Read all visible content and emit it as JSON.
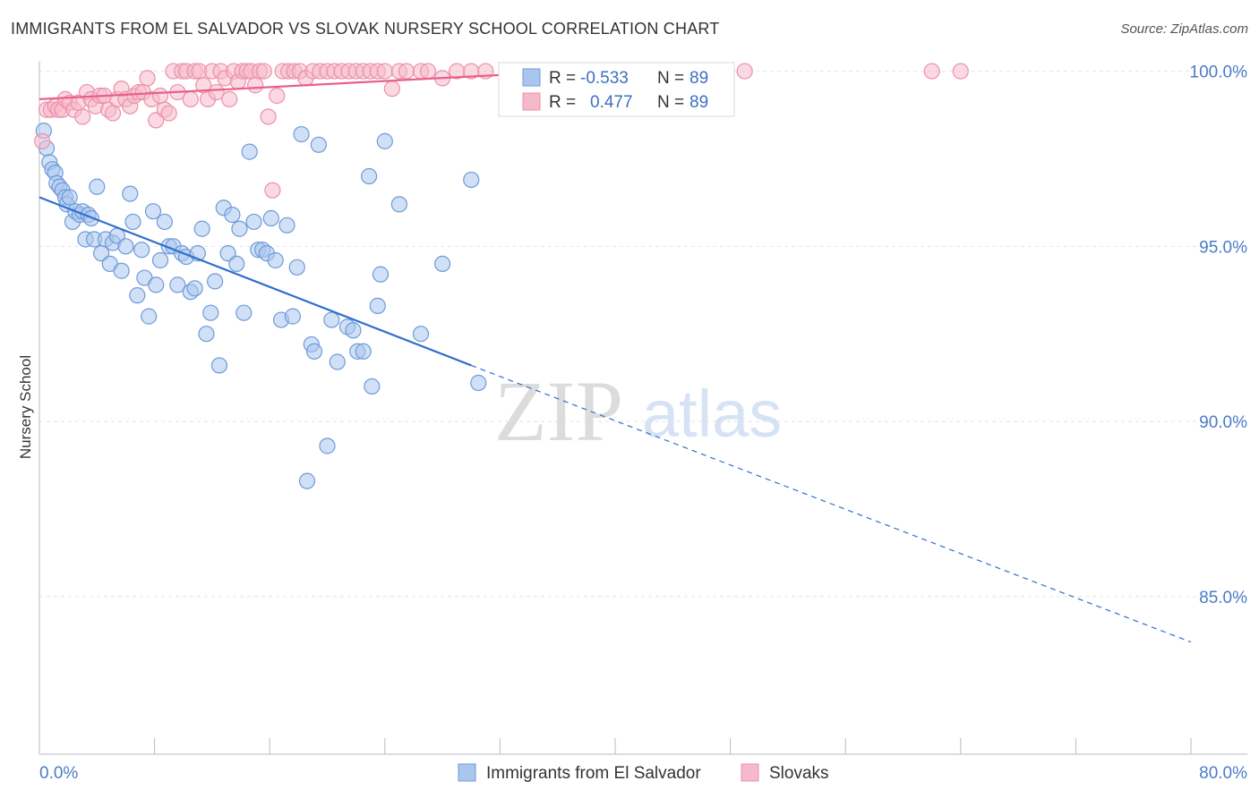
{
  "title": "IMMIGRANTS FROM EL SALVADOR VS SLOVAK NURSERY SCHOOL CORRELATION CHART",
  "source": "Source: ZipAtlas.com",
  "watermark": {
    "zip": "ZIP",
    "atlas": "atlas"
  },
  "colors": {
    "blue_fill": "#a9c6ef",
    "blue_stroke": "#6f9ad8",
    "blue_line": "#2f6fcf",
    "pink_fill": "#f6b9cb",
    "pink_stroke": "#ec8fab",
    "pink_line": "#e8608c",
    "tick_text": "#4a7cc7",
    "grid": "#e4e4e4"
  },
  "legend": {
    "rows": [
      {
        "r_label": "R =",
        "r_value": "-0.533",
        "n_label": "N =",
        "n_value": "89"
      },
      {
        "r_label": "R =",
        "r_value": "0.477",
        "n_label": "N =",
        "n_value": "89"
      }
    ]
  },
  "chart_data": {
    "type": "scatter",
    "xlabel": "",
    "ylabel": "Nursery School",
    "xlim": [
      0,
      80
    ],
    "ylim": [
      80.5,
      100.5
    ],
    "x_tick_labels": [
      "0.0%",
      "80.0%"
    ],
    "y_ticks": [
      85,
      90,
      95,
      100
    ],
    "y_tick_labels": [
      "85.0%",
      "90.0%",
      "95.0%",
      "100.0%"
    ],
    "grid": true,
    "legend_position": "top-center",
    "series": [
      {
        "name": "Immigrants from El Salvador",
        "color": "#a9c6ef",
        "trend": {
          "x0": 0,
          "y0": 96.4,
          "x1": 30,
          "y1": 91.6,
          "dash_x1": 80,
          "dash_y1": 83.7
        },
        "points": [
          [
            0.3,
            98.3
          ],
          [
            0.5,
            97.8
          ],
          [
            0.7,
            97.4
          ],
          [
            0.9,
            97.2
          ],
          [
            1.1,
            97.1
          ],
          [
            1.2,
            96.8
          ],
          [
            1.4,
            96.7
          ],
          [
            1.6,
            96.6
          ],
          [
            1.8,
            96.4
          ],
          [
            1.9,
            96.2
          ],
          [
            2.1,
            96.4
          ],
          [
            2.3,
            95.7
          ],
          [
            2.5,
            96.0
          ],
          [
            2.8,
            95.9
          ],
          [
            3.0,
            96.0
          ],
          [
            3.2,
            95.2
          ],
          [
            3.4,
            95.9
          ],
          [
            3.6,
            95.8
          ],
          [
            3.8,
            95.2
          ],
          [
            4.0,
            96.7
          ],
          [
            4.3,
            94.8
          ],
          [
            4.6,
            95.2
          ],
          [
            4.9,
            94.5
          ],
          [
            5.1,
            95.1
          ],
          [
            5.4,
            95.3
          ],
          [
            5.7,
            94.3
          ],
          [
            6.0,
            95.0
          ],
          [
            6.3,
            96.5
          ],
          [
            6.5,
            95.7
          ],
          [
            6.8,
            93.6
          ],
          [
            7.1,
            94.9
          ],
          [
            7.3,
            94.1
          ],
          [
            7.6,
            93.0
          ],
          [
            7.9,
            96.0
          ],
          [
            8.1,
            93.9
          ],
          [
            8.4,
            94.6
          ],
          [
            8.7,
            95.7
          ],
          [
            9.0,
            95.0
          ],
          [
            9.3,
            95.0
          ],
          [
            9.6,
            93.9
          ],
          [
            9.9,
            94.8
          ],
          [
            10.2,
            94.7
          ],
          [
            10.5,
            93.7
          ],
          [
            10.8,
            93.8
          ],
          [
            11.0,
            94.8
          ],
          [
            11.3,
            95.5
          ],
          [
            11.6,
            92.5
          ],
          [
            11.9,
            93.1
          ],
          [
            12.2,
            94.0
          ],
          [
            12.5,
            91.6
          ],
          [
            12.8,
            96.1
          ],
          [
            13.1,
            94.8
          ],
          [
            13.4,
            95.9
          ],
          [
            13.7,
            94.5
          ],
          [
            13.9,
            95.5
          ],
          [
            14.2,
            93.1
          ],
          [
            14.6,
            97.7
          ],
          [
            14.9,
            95.7
          ],
          [
            15.2,
            94.9
          ],
          [
            15.5,
            94.9
          ],
          [
            15.8,
            94.8
          ],
          [
            16.1,
            95.8
          ],
          [
            16.4,
            94.6
          ],
          [
            16.8,
            92.9
          ],
          [
            17.2,
            95.6
          ],
          [
            17.6,
            93.0
          ],
          [
            17.9,
            94.4
          ],
          [
            18.2,
            98.2
          ],
          [
            18.6,
            88.3
          ],
          [
            18.9,
            92.2
          ],
          [
            19.1,
            92.0
          ],
          [
            19.4,
            97.9
          ],
          [
            20.0,
            89.3
          ],
          [
            20.3,
            92.9
          ],
          [
            20.7,
            91.7
          ],
          [
            21.4,
            92.7
          ],
          [
            21.8,
            92.6
          ],
          [
            22.1,
            92.0
          ],
          [
            22.5,
            92.0
          ],
          [
            22.9,
            97.0
          ],
          [
            23.1,
            91.0
          ],
          [
            23.5,
            93.3
          ],
          [
            23.7,
            94.2
          ],
          [
            24.0,
            98.0
          ],
          [
            25.0,
            96.2
          ],
          [
            26.5,
            92.5
          ],
          [
            28.0,
            94.5
          ],
          [
            30.0,
            96.9
          ],
          [
            30.5,
            91.1
          ]
        ]
      },
      {
        "name": "Slovaks",
        "color": "#f6b9cb",
        "trend": {
          "x0": 0,
          "y0": 99.2,
          "x1": 37,
          "y1": 100.0
        },
        "points": [
          [
            0.2,
            98.0
          ],
          [
            0.5,
            98.9
          ],
          [
            0.8,
            98.9
          ],
          [
            1.1,
            99.0
          ],
          [
            1.3,
            98.9
          ],
          [
            1.6,
            98.9
          ],
          [
            1.8,
            99.2
          ],
          [
            2.1,
            99.1
          ],
          [
            2.4,
            98.9
          ],
          [
            2.7,
            99.1
          ],
          [
            3.0,
            98.7
          ],
          [
            3.3,
            99.4
          ],
          [
            3.6,
            99.2
          ],
          [
            3.9,
            99.0
          ],
          [
            4.2,
            99.3
          ],
          [
            4.5,
            99.3
          ],
          [
            4.8,
            98.9
          ],
          [
            5.1,
            98.8
          ],
          [
            5.4,
            99.2
          ],
          [
            5.7,
            99.5
          ],
          [
            6.0,
            99.2
          ],
          [
            6.3,
            99.0
          ],
          [
            6.6,
            99.3
          ],
          [
            6.9,
            99.4
          ],
          [
            7.2,
            99.4
          ],
          [
            7.5,
            99.8
          ],
          [
            7.8,
            99.2
          ],
          [
            8.1,
            98.6
          ],
          [
            8.4,
            99.3
          ],
          [
            8.7,
            98.9
          ],
          [
            9.0,
            98.8
          ],
          [
            9.3,
            100.0
          ],
          [
            9.6,
            99.4
          ],
          [
            9.9,
            100.0
          ],
          [
            10.2,
            100.0
          ],
          [
            10.5,
            99.2
          ],
          [
            10.8,
            100.0
          ],
          [
            11.1,
            100.0
          ],
          [
            11.4,
            99.6
          ],
          [
            11.7,
            99.2
          ],
          [
            12.0,
            100.0
          ],
          [
            12.3,
            99.4
          ],
          [
            12.6,
            100.0
          ],
          [
            12.9,
            99.8
          ],
          [
            13.2,
            99.2
          ],
          [
            13.5,
            100.0
          ],
          [
            13.8,
            99.7
          ],
          [
            14.1,
            100.0
          ],
          [
            14.4,
            100.0
          ],
          [
            14.7,
            100.0
          ],
          [
            15.0,
            99.6
          ],
          [
            15.3,
            100.0
          ],
          [
            15.6,
            100.0
          ],
          [
            15.9,
            98.7
          ],
          [
            16.2,
            96.6
          ],
          [
            16.5,
            99.3
          ],
          [
            16.9,
            100.0
          ],
          [
            17.3,
            100.0
          ],
          [
            17.7,
            100.0
          ],
          [
            18.1,
            100.0
          ],
          [
            18.5,
            99.8
          ],
          [
            19.0,
            100.0
          ],
          [
            19.5,
            100.0
          ],
          [
            20.0,
            100.0
          ],
          [
            20.5,
            100.0
          ],
          [
            21.0,
            100.0
          ],
          [
            21.5,
            100.0
          ],
          [
            22.0,
            100.0
          ],
          [
            22.5,
            100.0
          ],
          [
            23.0,
            100.0
          ],
          [
            23.5,
            100.0
          ],
          [
            24.0,
            100.0
          ],
          [
            24.5,
            99.5
          ],
          [
            25.0,
            100.0
          ],
          [
            25.5,
            100.0
          ],
          [
            26.5,
            100.0
          ],
          [
            27.0,
            100.0
          ],
          [
            28.0,
            99.8
          ],
          [
            29.0,
            100.0
          ],
          [
            30.0,
            100.0
          ],
          [
            31.0,
            100.0
          ],
          [
            32.5,
            100.0
          ],
          [
            34.0,
            100.0
          ],
          [
            36.0,
            100.0
          ],
          [
            38.0,
            100.0
          ],
          [
            41.0,
            100.0
          ],
          [
            49.0,
            100.0
          ],
          [
            62.0,
            100.0
          ],
          [
            64.0,
            100.0
          ]
        ]
      }
    ]
  }
}
